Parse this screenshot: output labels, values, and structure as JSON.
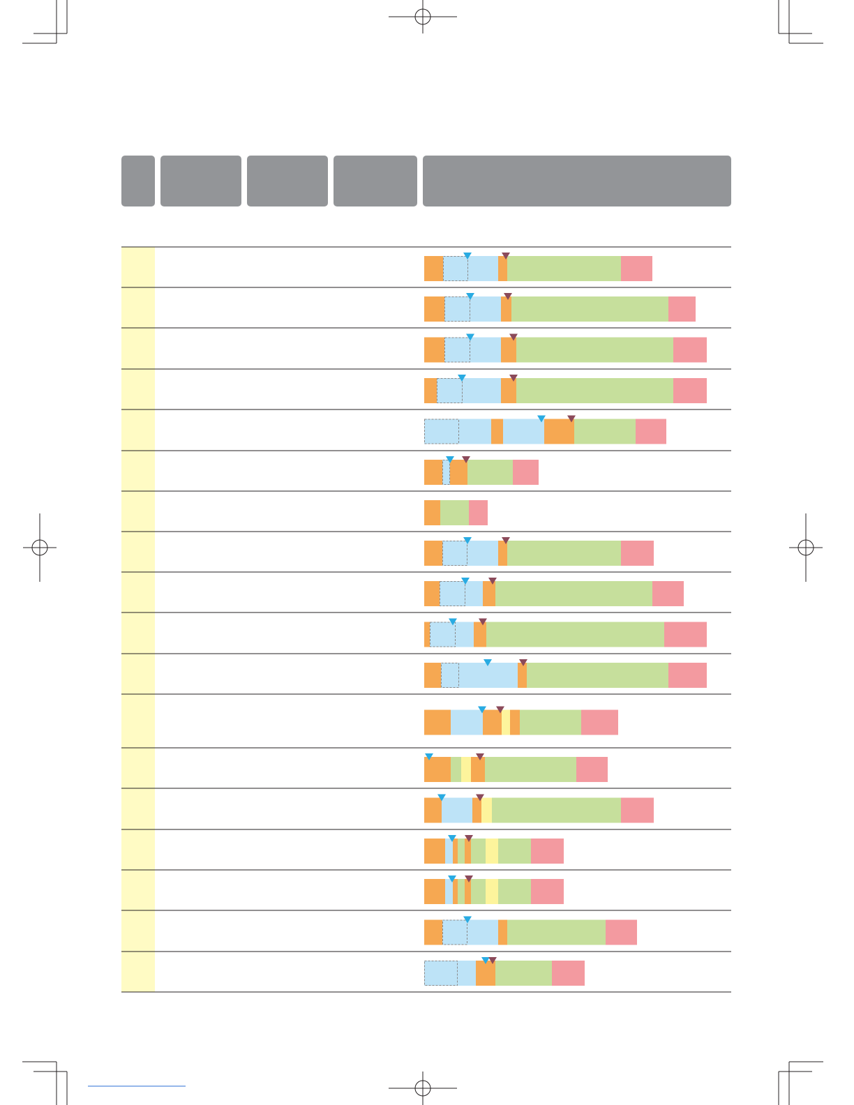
{
  "chart_data": {
    "type": "bar",
    "colors": {
      "orange": "#f6a852",
      "blue": "#bde3f7",
      "green": "#c6df9c",
      "red": "#f39aa0",
      "yellow": "#fdf49c",
      "start_marker": "#29abe2",
      "end_marker": "#8b4a5a"
    },
    "xlim": [
      0,
      440
    ],
    "categories": [
      null,
      null,
      null,
      null,
      null,
      null,
      null,
      null,
      null,
      null,
      null,
      null,
      null,
      null,
      null,
      null,
      null,
      null
    ],
    "rows": [
      {
        "segments": [
          {
            "kind": "orange",
            "value": 27
          },
          {
            "kind": "blue",
            "value": 79
          },
          {
            "kind": "orange",
            "value": 13
          },
          {
            "kind": "green",
            "value": 163
          },
          {
            "kind": "red",
            "value": 45
          }
        ],
        "dashed": {
          "start": 27,
          "length": 36
        },
        "start_marker": 62,
        "end_marker": 117
      },
      {
        "segments": [
          {
            "kind": "orange",
            "value": 29
          },
          {
            "kind": "blue",
            "value": 81
          },
          {
            "kind": "orange",
            "value": 15
          },
          {
            "kind": "green",
            "value": 225
          },
          {
            "kind": "red",
            "value": 39
          }
        ],
        "dashed": {
          "start": 29,
          "length": 37
        },
        "start_marker": 66,
        "end_marker": 120
      },
      {
        "segments": [
          {
            "kind": "orange",
            "value": 29
          },
          {
            "kind": "blue",
            "value": 81
          },
          {
            "kind": "orange",
            "value": 22
          },
          {
            "kind": "green",
            "value": 225
          },
          {
            "kind": "red",
            "value": 48
          }
        ],
        "dashed": {
          "start": 29,
          "length": 37
        },
        "start_marker": 66,
        "end_marker": 128
      },
      {
        "segments": [
          {
            "kind": "orange",
            "value": 18
          },
          {
            "kind": "blue",
            "value": 92
          },
          {
            "kind": "orange",
            "value": 22
          },
          {
            "kind": "green",
            "value": 225
          },
          {
            "kind": "red",
            "value": 48
          }
        ],
        "dashed": {
          "start": 18,
          "length": 37
        },
        "start_marker": 54,
        "end_marker": 128
      },
      {
        "segments": [
          {
            "kind": "blue",
            "value": 96
          },
          {
            "kind": "orange",
            "value": 17
          },
          {
            "kind": "blue",
            "value": 59
          },
          {
            "kind": "orange",
            "value": 43
          },
          {
            "kind": "green",
            "value": 88
          },
          {
            "kind": "red",
            "value": 44
          }
        ],
        "dashed": {
          "start": 0,
          "length": 50
        },
        "start_marker": 168,
        "end_marker": 211
      },
      {
        "segments": [
          {
            "kind": "orange",
            "value": 26
          },
          {
            "kind": "blue",
            "value": 11
          },
          {
            "kind": "orange",
            "value": 25
          },
          {
            "kind": "green",
            "value": 65
          },
          {
            "kind": "red",
            "value": 37
          }
        ],
        "dashed": {
          "start": 26,
          "length": 11
        },
        "start_marker": 37,
        "end_marker": 60
      },
      {
        "segments": [
          {
            "kind": "orange",
            "value": 23
          },
          {
            "kind": "green",
            "value": 41
          },
          {
            "kind": "red",
            "value": 27
          }
        ]
      },
      {
        "segments": [
          {
            "kind": "orange",
            "value": 26
          },
          {
            "kind": "blue",
            "value": 80
          },
          {
            "kind": "orange",
            "value": 13
          },
          {
            "kind": "green",
            "value": 163
          },
          {
            "kind": "red",
            "value": 47
          }
        ],
        "dashed": {
          "start": 26,
          "length": 36
        },
        "start_marker": 62,
        "end_marker": 117
      },
      {
        "segments": [
          {
            "kind": "orange",
            "value": 22
          },
          {
            "kind": "blue",
            "value": 62
          },
          {
            "kind": "orange",
            "value": 18
          },
          {
            "kind": "green",
            "value": 225
          },
          {
            "kind": "red",
            "value": 45
          }
        ],
        "dashed": {
          "start": 22,
          "length": 37
        },
        "start_marker": 59,
        "end_marker": 98
      },
      {
        "segments": [
          {
            "kind": "orange",
            "value": 8
          },
          {
            "kind": "blue",
            "value": 63
          },
          {
            "kind": "orange",
            "value": 18
          },
          {
            "kind": "green",
            "value": 255
          },
          {
            "kind": "red",
            "value": 61
          }
        ],
        "dashed": {
          "start": 8,
          "length": 37
        },
        "start_marker": 41,
        "end_marker": 84
      },
      {
        "segments": [
          {
            "kind": "orange",
            "value": 24
          },
          {
            "kind": "blue",
            "value": 110
          },
          {
            "kind": "orange",
            "value": 13
          },
          {
            "kind": "green",
            "value": 203
          },
          {
            "kind": "red",
            "value": 55
          }
        ],
        "dashed": {
          "start": 24,
          "length": 26
        },
        "start_marker": 91,
        "end_marker": 142
      },
      {
        "segments": [
          {
            "kind": "orange",
            "value": 38
          },
          {
            "kind": "blue",
            "value": 46
          },
          {
            "kind": "orange",
            "value": 27
          },
          {
            "kind": "yellow",
            "value": 12
          },
          {
            "kind": "orange",
            "value": 14
          },
          {
            "kind": "green",
            "value": 88
          },
          {
            "kind": "red",
            "value": 53
          }
        ],
        "start_marker": 83,
        "end_marker": 109
      },
      {
        "segments": [
          {
            "kind": "orange",
            "value": 38
          },
          {
            "kind": "green",
            "value": 15
          },
          {
            "kind": "yellow",
            "value": 14
          },
          {
            "kind": "orange",
            "value": 20
          },
          {
            "kind": "green",
            "value": 131
          },
          {
            "kind": "red",
            "value": 45
          }
        ],
        "start_marker": 7,
        "end_marker": 80
      },
      {
        "segments": [
          {
            "kind": "orange",
            "value": 25
          },
          {
            "kind": "blue",
            "value": 44
          },
          {
            "kind": "orange",
            "value": 13
          },
          {
            "kind": "yellow",
            "value": 15
          },
          {
            "kind": "green",
            "value": 185
          },
          {
            "kind": "red",
            "value": 47
          }
        ],
        "start_marker": 25,
        "end_marker": 80
      },
      {
        "segments": [
          {
            "kind": "orange",
            "value": 30
          },
          {
            "kind": "blue",
            "value": 11
          },
          {
            "kind": "orange",
            "value": 7
          },
          {
            "kind": "green",
            "value": 10
          },
          {
            "kind": "orange",
            "value": 9
          },
          {
            "kind": "green",
            "value": 21
          },
          {
            "kind": "yellow",
            "value": 18
          },
          {
            "kind": "green",
            "value": 47
          },
          {
            "kind": "red",
            "value": 47
          }
        ],
        "start_marker": 40,
        "end_marker": 64
      },
      {
        "segments": [
          {
            "kind": "orange",
            "value": 30
          },
          {
            "kind": "blue",
            "value": 11
          },
          {
            "kind": "orange",
            "value": 7
          },
          {
            "kind": "green",
            "value": 10
          },
          {
            "kind": "orange",
            "value": 9
          },
          {
            "kind": "green",
            "value": 21
          },
          {
            "kind": "yellow",
            "value": 18
          },
          {
            "kind": "green",
            "value": 47
          },
          {
            "kind": "red",
            "value": 47
          }
        ],
        "start_marker": 40,
        "end_marker": 64
      },
      {
        "segments": [
          {
            "kind": "orange",
            "value": 26
          },
          {
            "kind": "blue",
            "value": 80
          },
          {
            "kind": "orange",
            "value": 13
          },
          {
            "kind": "green",
            "value": 141
          },
          {
            "kind": "red",
            "value": 45
          }
        ],
        "dashed": {
          "start": 26,
          "length": 36
        },
        "start_marker": 62
      },
      {
        "segments": [
          {
            "kind": "blue",
            "value": 74
          },
          {
            "kind": "orange",
            "value": 28
          },
          {
            "kind": "green",
            "value": 81
          },
          {
            "kind": "red",
            "value": 47
          }
        ],
        "dashed": {
          "start": 0,
          "length": 48
        },
        "start_marker": 88,
        "end_marker": 98
      }
    ]
  }
}
